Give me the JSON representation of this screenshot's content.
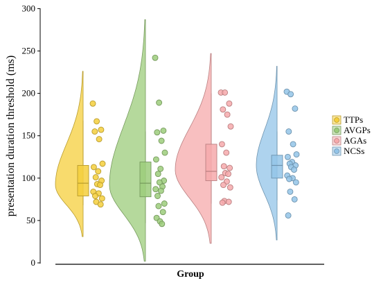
{
  "chart_data": {
    "type": "raincloud",
    "title": "",
    "xlabel": "Group",
    "ylabel": "presentation duration threshold (ms)",
    "ylim": [
      0,
      300
    ],
    "yticks": [
      0,
      50,
      100,
      150,
      200,
      250,
      300
    ],
    "grid": false,
    "legend_position": "right",
    "series": [
      {
        "name": "TTPs",
        "color": "#f5cf3c",
        "violin": {
          "min": 31,
          "max": 226,
          "peak": 92
        },
        "box": {
          "q1": 79,
          "median": 94,
          "q3": 115,
          "whisker_low": 68,
          "whisker_high": 168
        },
        "points": [
          188,
          167,
          157,
          155,
          146,
          117,
          113,
          108,
          101,
          97,
          93,
          92,
          84,
          82,
          79,
          76,
          72,
          69
        ]
      },
      {
        "name": "AVGPs",
        "color": "#9ccc7b",
        "violin": {
          "min": 2,
          "max": 287,
          "peak": 92
        },
        "box": {
          "q1": 78,
          "median": 94,
          "q3": 119,
          "whisker_low": 47,
          "whisker_high": 155
        },
        "points": [
          242,
          189,
          156,
          154,
          144,
          130,
          122,
          111,
          105,
          97,
          95,
          90,
          87,
          85,
          79,
          70,
          67,
          60,
          53,
          49,
          46
        ]
      },
      {
        "name": "AGAs",
        "color": "#f6a9ab",
        "violin": {
          "min": 23,
          "max": 247,
          "peak": 110
        },
        "box": {
          "q1": 97,
          "median": 108,
          "q3": 140,
          "whisker_low": 70,
          "whisker_high": 200
        },
        "points": [
          201,
          201,
          188,
          181,
          175,
          161,
          140,
          130,
          114,
          112,
          106,
          105,
          101,
          96,
          92,
          89,
          73,
          72,
          71
        ]
      },
      {
        "name": "NCSs",
        "color": "#93c4e8",
        "violin": {
          "min": 27,
          "max": 232,
          "peak": 115
        },
        "box": {
          "q1": 100,
          "median": 115,
          "q3": 127,
          "whisker_low": 74,
          "whisker_high": 155
        },
        "points": [
          202,
          199,
          182,
          155,
          140,
          128,
          125,
          119,
          117,
          115,
          113,
          110,
          103,
          100,
          99,
          95,
          84,
          75,
          56
        ]
      }
    ]
  }
}
